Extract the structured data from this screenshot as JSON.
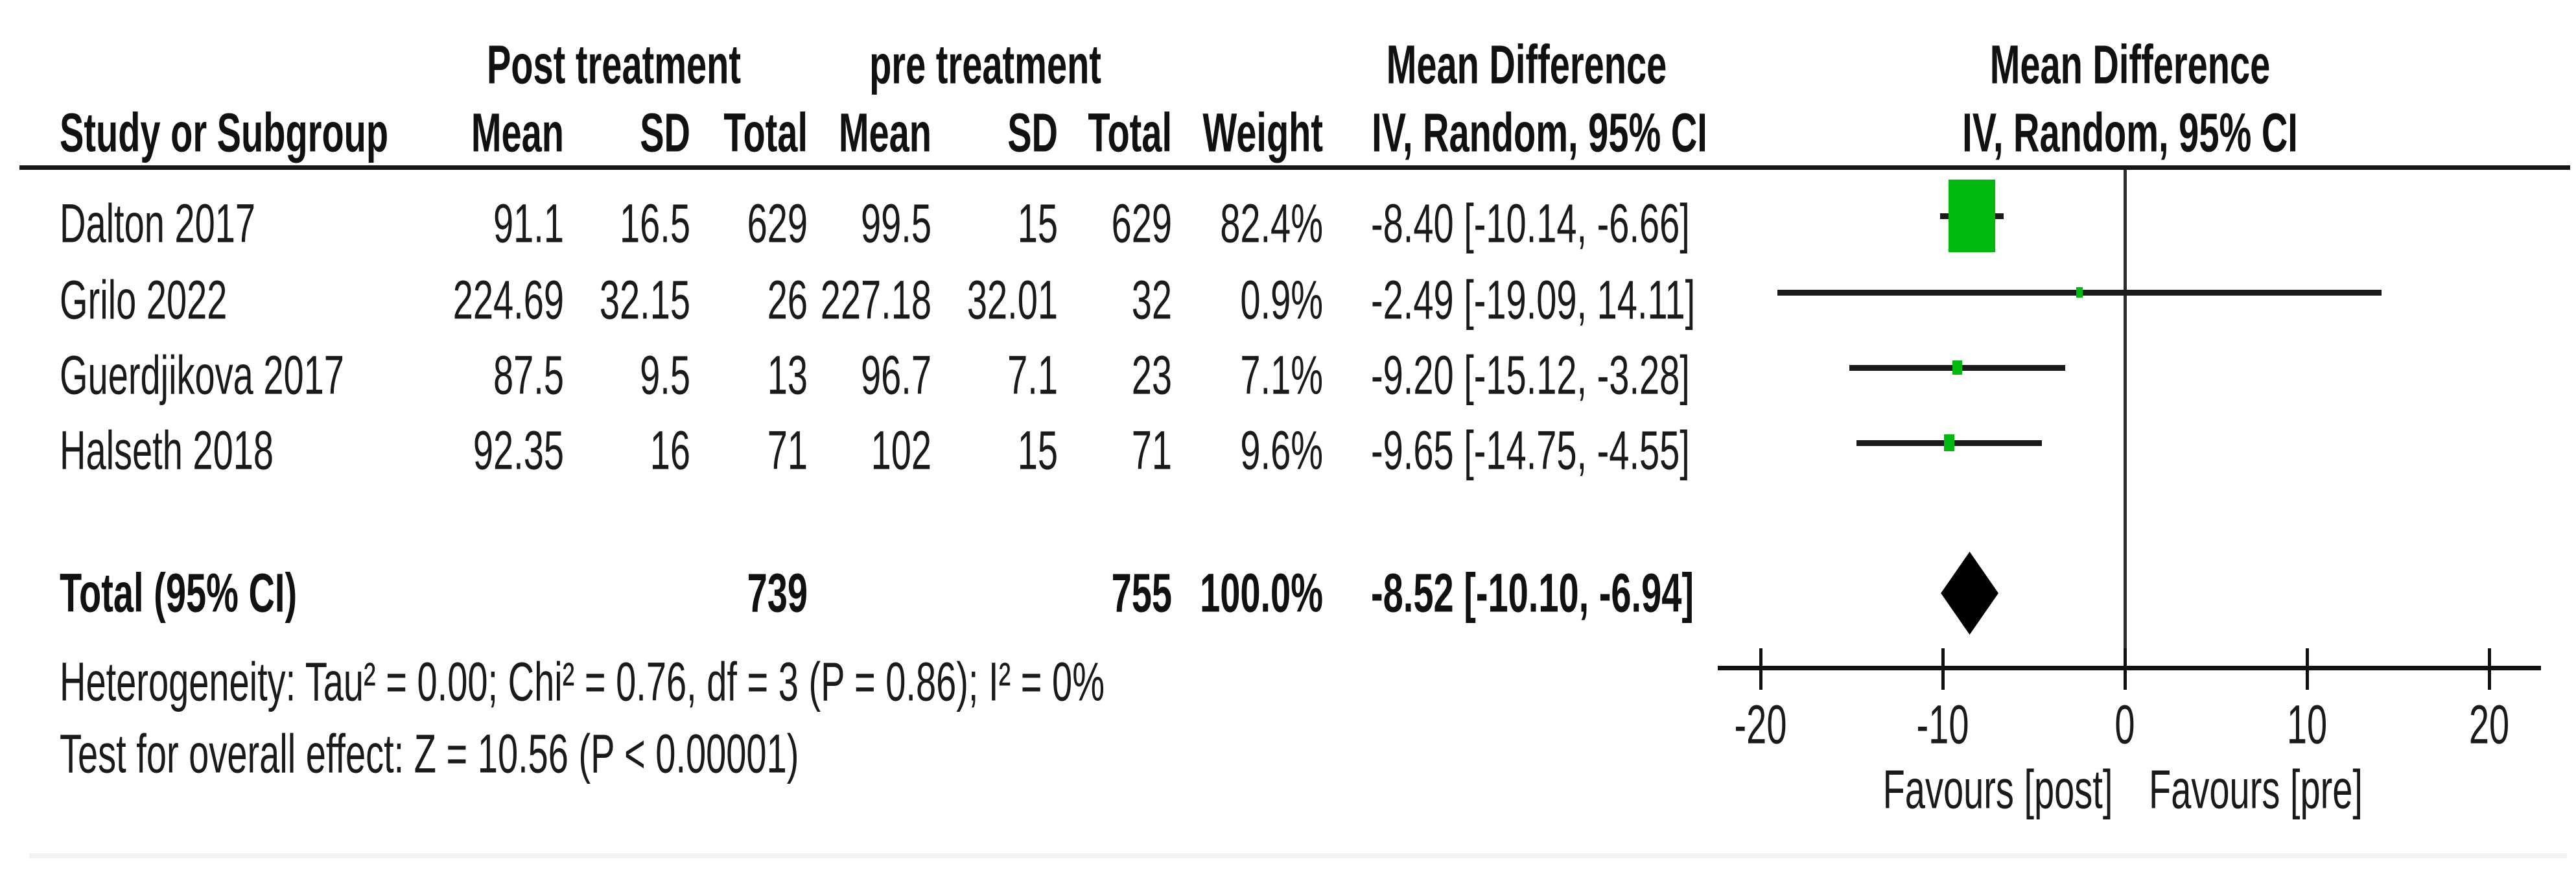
{
  "title_row": {
    "post_group": "Post treatment",
    "pre_group": "pre treatment",
    "md_col_title": "Mean Difference",
    "md_col_subtitle": "IV, Random, 95% CI",
    "plot_title": "Mean Difference",
    "plot_subtitle": "IV, Random, 95% CI"
  },
  "columns": {
    "study": "Study or Subgroup",
    "mean": "Mean",
    "sd": "SD",
    "total": "Total",
    "weight": "Weight"
  },
  "rows": [
    {
      "study": "Dalton 2017",
      "mean_post": "91.1",
      "sd_post": "16.5",
      "total_post": "629",
      "mean_pre": "99.5",
      "sd_pre": "15",
      "total_pre": "629",
      "weight": "82.4%",
      "md_ci": "-8.40 [-10.14, -6.66]"
    },
    {
      "study": "Grilo 2022",
      "mean_post": "224.69",
      "sd_post": "32.15",
      "total_post": "26",
      "mean_pre": "227.18",
      "sd_pre": "32.01",
      "total_pre": "32",
      "weight": "0.9%",
      "md_ci": "-2.49 [-19.09, 14.11]"
    },
    {
      "study": "Guerdjikova 2017",
      "mean_post": "87.5",
      "sd_post": "9.5",
      "total_post": "13",
      "mean_pre": "96.7",
      "sd_pre": "7.1",
      "total_pre": "23",
      "weight": "7.1%",
      "md_ci": "-9.20 [-15.12, -3.28]"
    },
    {
      "study": "Halseth 2018",
      "mean_post": "92.35",
      "sd_post": "16",
      "total_post": "71",
      "mean_pre": "102",
      "sd_pre": "15",
      "total_pre": "71",
      "weight": "9.6%",
      "md_ci": "-9.65 [-14.75, -4.55]"
    }
  ],
  "total_row": {
    "label": "Total (95% CI)",
    "total_post": "739",
    "total_pre": "755",
    "weight": "100.0%",
    "md_ci": "-8.52 [-10.10, -6.94]"
  },
  "footer": {
    "heterogeneity": "Heterogeneity: Tau² = 0.00; Chi² = 0.76, df = 3 (P = 0.86); I² = 0%",
    "overall_effect": "Test for overall effect: Z = 10.56 (P < 0.00001)"
  },
  "chart_data": {
    "type": "scatter",
    "subtype": "forest-plot",
    "effect_measure": "Mean Difference, IV, Random, 95% CI",
    "studies": [
      {
        "name": "Dalton 2017",
        "md": -8.4,
        "ci_low": -10.14,
        "ci_high": -6.66,
        "weight_pct": 82.4
      },
      {
        "name": "Grilo 2022",
        "md": -2.49,
        "ci_low": -19.09,
        "ci_high": 14.11,
        "weight_pct": 0.9
      },
      {
        "name": "Guerdjikova 2017",
        "md": -9.2,
        "ci_low": -15.12,
        "ci_high": -3.28,
        "weight_pct": 7.1
      },
      {
        "name": "Halseth 2018",
        "md": -9.65,
        "ci_low": -14.75,
        "ci_high": -4.55,
        "weight_pct": 9.6
      }
    ],
    "total": {
      "md": -8.52,
      "ci_low": -10.1,
      "ci_high": -6.94,
      "weight_pct": 100.0
    },
    "axis": {
      "min": -20,
      "max": 20,
      "ticks": [
        -20,
        -10,
        0,
        10,
        20
      ]
    },
    "favours_left": "Favours [post]",
    "favours_right": "Favours [pre]",
    "marker_color": "#00b80e",
    "line_color": "#1a1a1a",
    "diamond_color": "#000000"
  }
}
